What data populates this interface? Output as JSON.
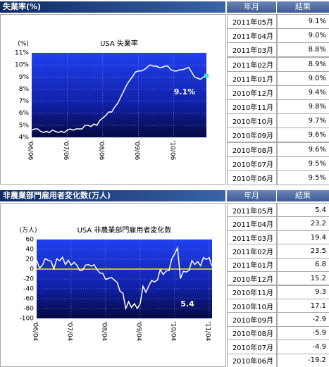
{
  "chart_data": [
    {
      "type": "line",
      "title": "USA 失業率",
      "y_label": "(%)",
      "categories": [
        "'06/06",
        null,
        null,
        null,
        null,
        null,
        null,
        null,
        null,
        null,
        null,
        null,
        "'07/06",
        null,
        null,
        null,
        null,
        null,
        null,
        null,
        null,
        null,
        null,
        null,
        "'08/06",
        null,
        null,
        null,
        null,
        null,
        null,
        null,
        null,
        null,
        null,
        null,
        "'09/06",
        null,
        null,
        null,
        null,
        null,
        null,
        null,
        null,
        null,
        null,
        null,
        "'10/06",
        null,
        null,
        null,
        null,
        null,
        null,
        null,
        null,
        null,
        null,
        null
      ],
      "values": [
        4.6,
        4.7,
        4.7,
        4.5,
        4.4,
        4.5,
        4.4,
        4.6,
        4.5,
        4.4,
        4.5,
        4.4,
        4.6,
        4.7,
        4.6,
        4.7,
        4.7,
        4.7,
        5.0,
        5.0,
        4.9,
        5.1,
        5.0,
        5.4,
        5.6,
        5.8,
        6.1,
        6.1,
        6.5,
        6.8,
        7.3,
        7.8,
        8.3,
        8.7,
        9.0,
        9.4,
        9.5,
        9.5,
        9.6,
        9.8,
        10.0,
        9.9,
        9.9,
        9.8,
        9.8,
        9.9,
        9.9,
        9.6,
        9.5,
        9.5,
        9.6,
        9.6,
        9.7,
        9.8,
        9.4,
        9.0,
        8.9,
        8.8,
        9.0,
        9.1
      ],
      "color": "#ffffff",
      "ylim": [
        4,
        11
      ],
      "yticks": [
        {
          "value": 4,
          "label": "4%"
        },
        {
          "value": 5,
          "label": "5%"
        },
        {
          "value": 6,
          "label": "6%"
        },
        {
          "value": 7,
          "label": "7%"
        },
        {
          "value": 8,
          "label": "8%"
        },
        {
          "value": 9,
          "label": "9%"
        },
        {
          "value": 10,
          "label": "10%"
        },
        {
          "value": 11,
          "label": "11%"
        }
      ],
      "grid": true,
      "annotation": "9.1%"
    },
    {
      "type": "line",
      "title": "USA 非農業部門雇用者変化数",
      "y_label": "(万人)",
      "categories": [
        "'06/04",
        null,
        null,
        null,
        null,
        null,
        null,
        null,
        null,
        null,
        null,
        null,
        "'07/04",
        null,
        null,
        null,
        null,
        null,
        null,
        null,
        null,
        null,
        null,
        null,
        "'08/04",
        null,
        null,
        null,
        null,
        null,
        null,
        null,
        null,
        null,
        null,
        null,
        "'09/04",
        null,
        null,
        null,
        null,
        null,
        null,
        null,
        null,
        null,
        null,
        null,
        "'10/04",
        null,
        null,
        null,
        null,
        null,
        null,
        null,
        null,
        null,
        null,
        null,
        "'11/04",
        null
      ],
      "values": [
        18,
        2,
        8,
        21,
        18,
        16,
        0.4,
        21,
        17,
        24,
        9,
        18,
        8,
        14,
        8,
        -3,
        -2,
        8,
        9,
        6,
        9,
        -1,
        -8,
        -9,
        -21,
        -19,
        -17,
        -22,
        -27,
        -45,
        -49,
        -80,
        -66,
        -78,
        -70,
        -80,
        -70,
        -35,
        -47,
        -34,
        -23,
        -26,
        -22,
        -1,
        -11,
        -4,
        -3,
        21,
        31,
        43,
        -19.2,
        -4.9,
        -5.9,
        -2.9,
        17.1,
        9.3,
        15.2,
        6.8,
        23.5,
        19.4,
        23.2,
        5.4
      ],
      "color": "#ffffff",
      "ylim": [
        -100,
        60
      ],
      "yticks": [
        -100,
        -80,
        -60,
        -40,
        -20,
        0,
        20,
        40,
        60
      ],
      "grid": true,
      "annotation": "5.4"
    }
  ],
  "panels": [
    {
      "header": "失業率(%)",
      "table": {
        "columns": [
          "年月",
          "結果"
        ],
        "rows": [
          [
            "2011年05月",
            "9.1%"
          ],
          [
            "2011年04月",
            "9.0%"
          ],
          [
            "2011年03月",
            "8.8%"
          ],
          [
            "2011年02月",
            "8.9%"
          ],
          [
            "2011年01月",
            "9.0%"
          ],
          [
            "2010年12月",
            "9.4%"
          ],
          [
            "2010年11月",
            "9.8%"
          ],
          [
            "2010年10月",
            "9.7%"
          ],
          [
            "2010年09月",
            "9.6%"
          ],
          [
            "2010年08月",
            "9.6%"
          ],
          [
            "2010年07月",
            "9.5%"
          ],
          [
            "2010年06月",
            "9.5%"
          ]
        ]
      }
    },
    {
      "header": "非農業部門雇用者変化数(万人)",
      "table": {
        "columns": [
          "年月",
          "結果"
        ],
        "rows": [
          [
            "2011年05月",
            "5.4"
          ],
          [
            "2011年04月",
            "23.2"
          ],
          [
            "2011年03月",
            "19.4"
          ],
          [
            "2011年02月",
            "23.5"
          ],
          [
            "2011年01月",
            "6.8"
          ],
          [
            "2010年12月",
            "15.2"
          ],
          [
            "2010年11月",
            "9.3"
          ],
          [
            "2010年10月",
            "17.1"
          ],
          [
            "2010年09月",
            "-2.9"
          ],
          [
            "2010年08月",
            "-5.9"
          ],
          [
            "2010年07月",
            "-4.9"
          ],
          [
            "2010年06月",
            "-19.2"
          ]
        ]
      }
    }
  ]
}
